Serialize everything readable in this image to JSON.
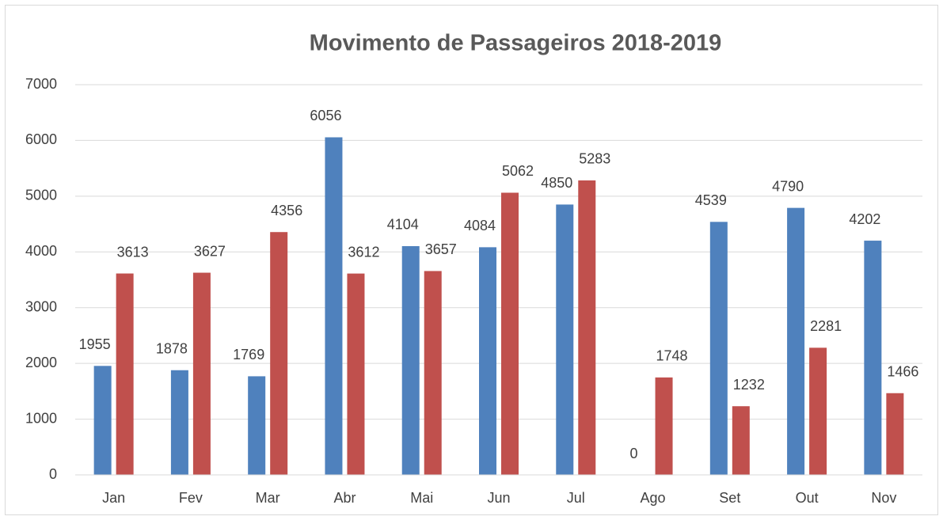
{
  "chart_data": {
    "type": "bar",
    "title": "Movimento de Passageiros 2018-2019",
    "categories": [
      "Jan",
      "Fev",
      "Mar",
      "Abr",
      "Mai",
      "Jun",
      "Jul",
      "Ago",
      "Set",
      "Out",
      "Nov"
    ],
    "series": [
      {
        "color": "#4f81bd",
        "values": [
          1955,
          1878,
          1769,
          6056,
          4104,
          4084,
          4850,
          0,
          4539,
          4790,
          4202
        ]
      },
      {
        "color": "#c0504d",
        "values": [
          3613,
          3627,
          4356,
          3612,
          3657,
          5062,
          5283,
          1748,
          1232,
          2281,
          1466
        ]
      }
    ],
    "ylim": [
      0,
      7000
    ],
    "yticks": [
      0,
      1000,
      2000,
      3000,
      4000,
      5000,
      6000,
      7000
    ],
    "grid": true,
    "data_labels": true
  }
}
